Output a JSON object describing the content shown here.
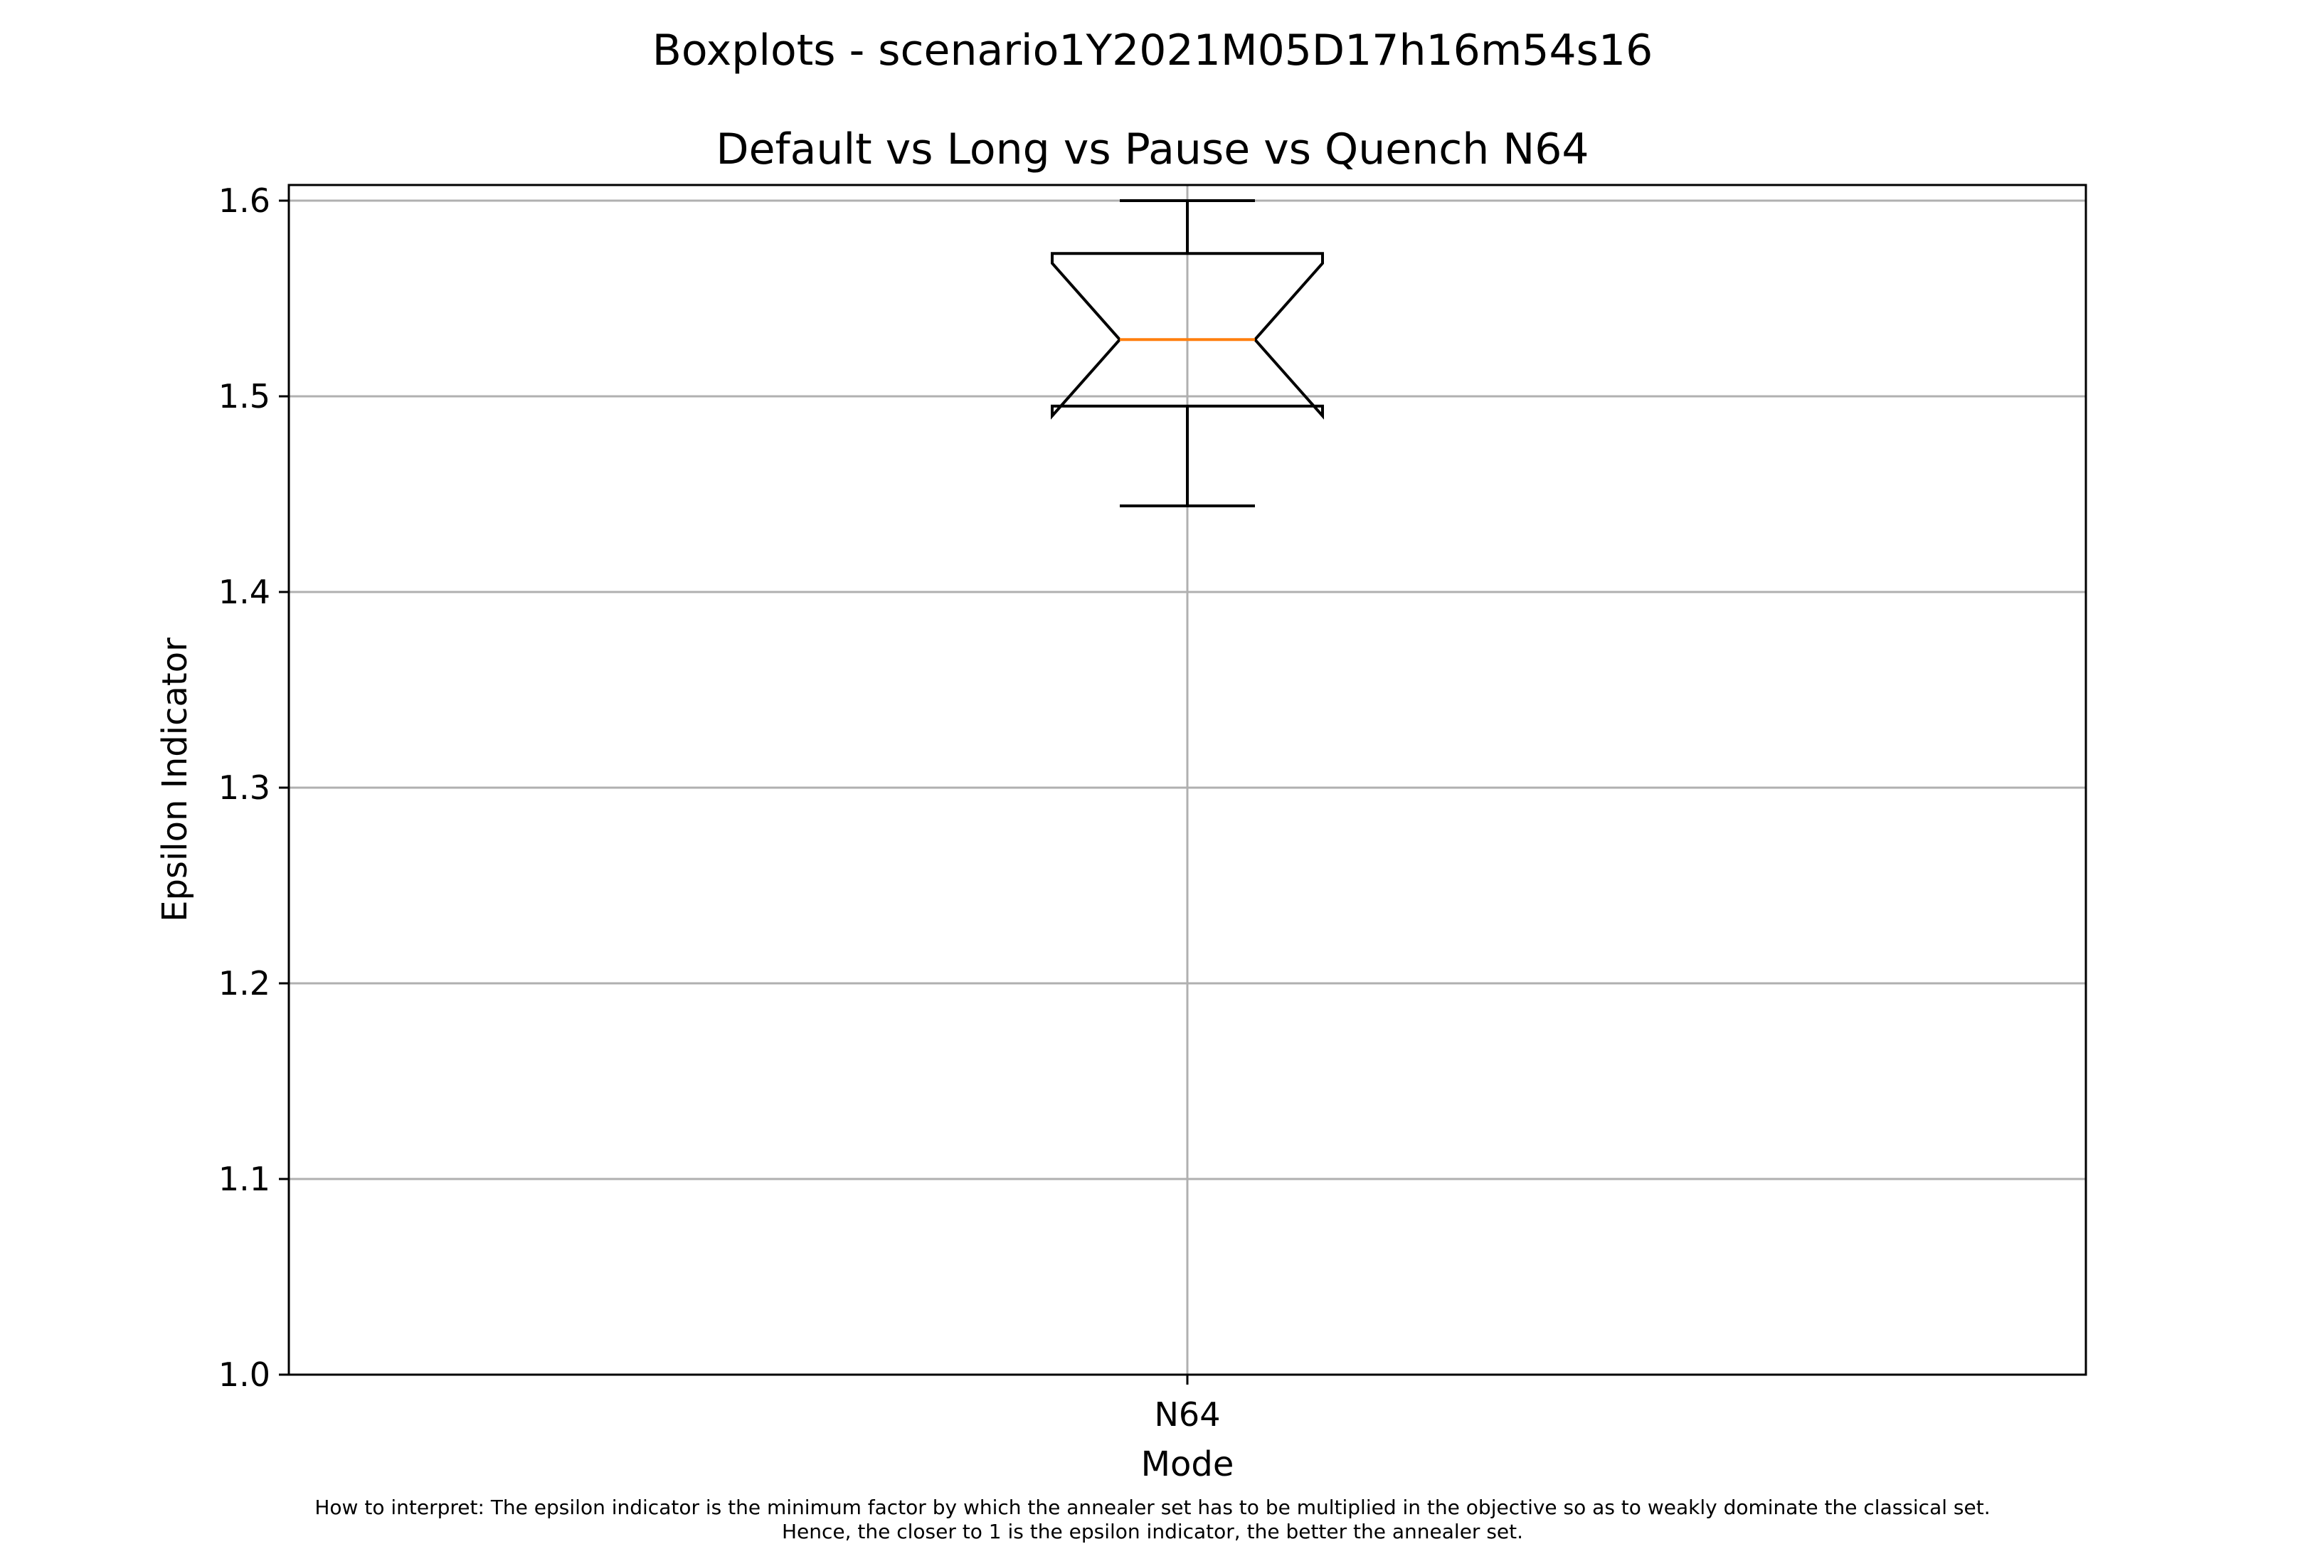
{
  "figure": {
    "suptitle": "Boxplots - scenario1Y2021M05D17h16m54s16",
    "note_line1": "How to interpret: The epsilon indicator is the minimum factor by which the annealer set has to be multiplied in the objective so as to weakly dominate the classical set.",
    "note_line2": "Hence, the closer to 1 is the epsilon indicator, the better the annealer set."
  },
  "chart_data": {
    "type": "boxplot",
    "title": "Default vs Long vs Pause vs Quench N64",
    "xlabel": "Mode",
    "ylabel": "Epsilon Indicator",
    "categories": [
      "N64"
    ],
    "ylim": [
      1.0,
      1.608
    ],
    "yticks": [
      1.0,
      1.1,
      1.2,
      1.3,
      1.4,
      1.5,
      1.6
    ],
    "ytick_labels": [
      "1.0",
      "1.1",
      "1.2",
      "1.3",
      "1.4",
      "1.5",
      "1.6"
    ],
    "grid": true,
    "notched": true,
    "boxes": [
      {
        "category": "N64",
        "whisker_low": 1.444,
        "q1": 1.495,
        "median": 1.529,
        "q3": 1.573,
        "whisker_high": 1.6,
        "notch_low": 1.49,
        "notch_high": 1.568
      }
    ],
    "colors": {
      "box": "#000000",
      "median": "#ff7f0e",
      "grid": "#b0b0b0"
    }
  }
}
